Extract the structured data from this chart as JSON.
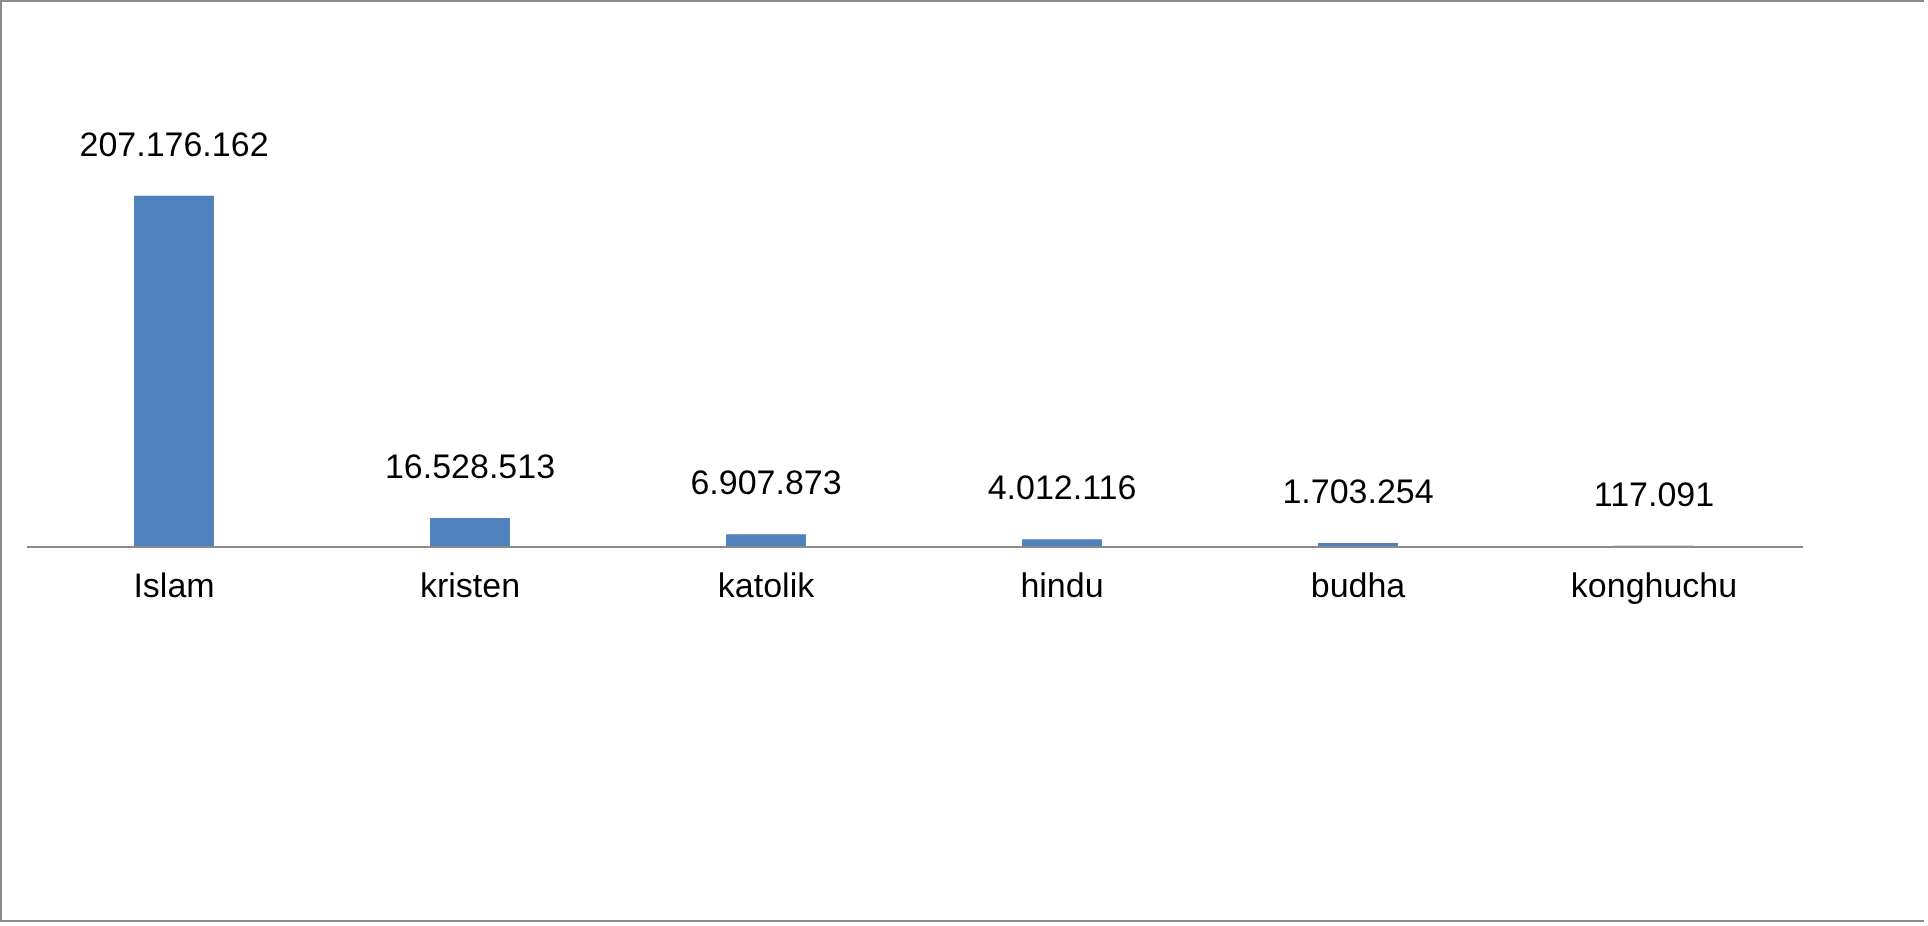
{
  "chart_data": {
    "type": "bar",
    "categories": [
      "Islam",
      "kristen",
      "katolik",
      "hindu",
      "budha",
      "konghuchu"
    ],
    "values": [
      207176162,
      16528513,
      6907873,
      4012116,
      1703254,
      117091
    ],
    "value_labels": [
      "207.176.162",
      "16.528.513",
      "6.907.873",
      "4.012.116",
      "1.703.254",
      "117.091"
    ],
    "color": "#4f81bd"
  }
}
